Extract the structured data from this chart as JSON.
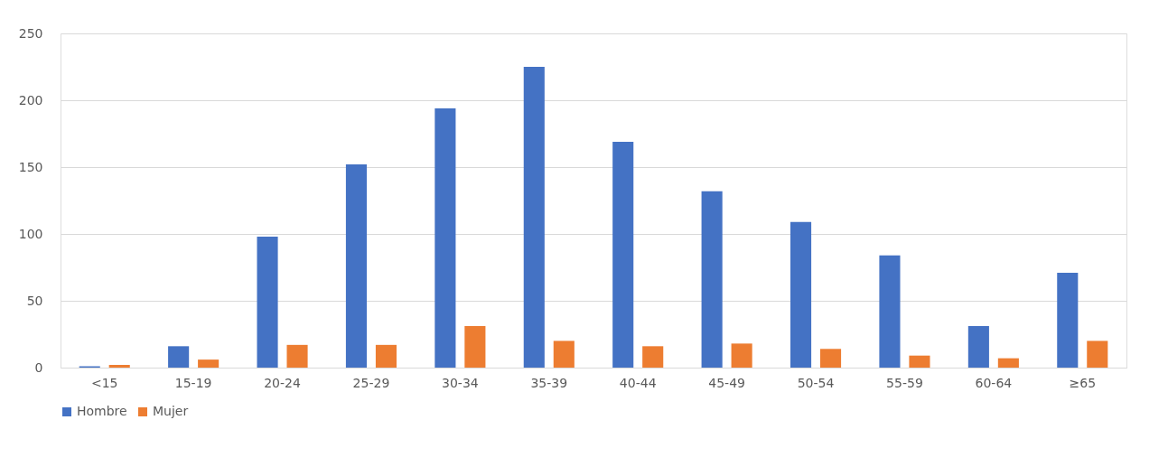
{
  "chart_data": {
    "type": "bar",
    "categories": [
      "<15",
      "15-19",
      "20-24",
      "25-29",
      "30-34",
      "35-39",
      "40-44",
      "45-49",
      "50-54",
      "55-59",
      "60-64",
      "≥65"
    ],
    "series": [
      {
        "name": "Hombre",
        "color": "#4472c4",
        "values": [
          1,
          16,
          98,
          152,
          194,
          225,
          169,
          132,
          109,
          84,
          31,
          71
        ]
      },
      {
        "name": "Mujer",
        "color": "#ed7d31",
        "values": [
          2,
          6,
          17,
          17,
          31,
          20,
          16,
          18,
          14,
          9,
          7,
          20
        ]
      }
    ],
    "ylim": [
      0,
      250
    ],
    "yticks": [
      0,
      50,
      100,
      150,
      200,
      250
    ],
    "grid": "y",
    "legend": "bottom"
  }
}
